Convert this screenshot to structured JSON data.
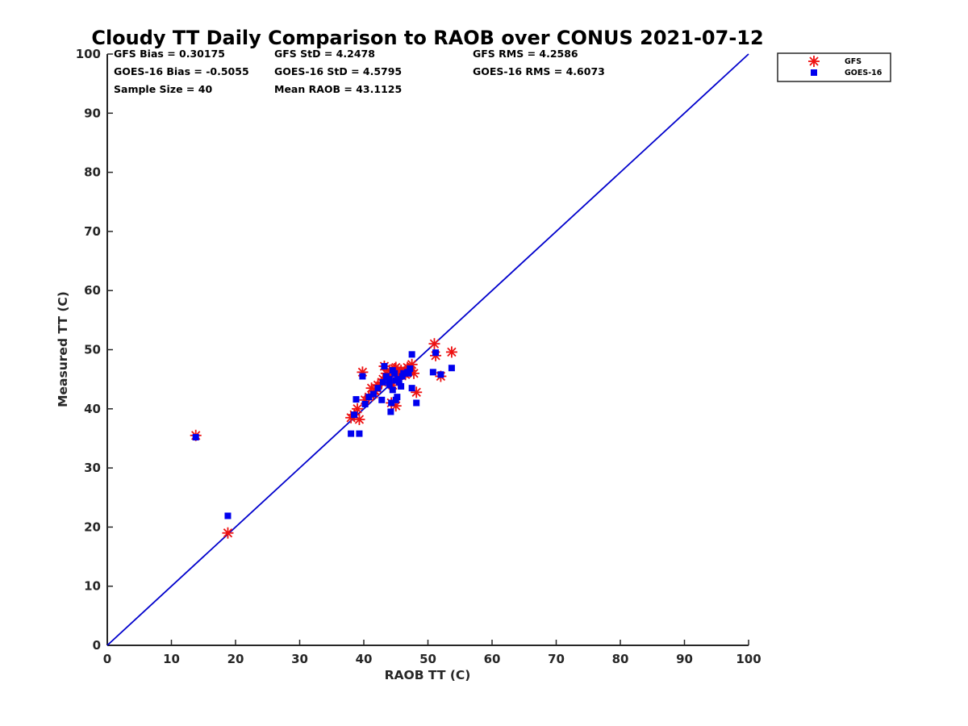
{
  "chart_data": {
    "type": "scatter",
    "title": "Cloudy TT Daily Comparison to RAOB over CONUS 2021-07-12",
    "xlabel": "RAOB TT (C)",
    "ylabel": "Measured TT (C)",
    "xlim": [
      0,
      100
    ],
    "ylim": [
      0,
      100
    ],
    "xticks": [
      "0",
      "10",
      "20",
      "30",
      "40",
      "50",
      "60",
      "70",
      "80",
      "90",
      "100"
    ],
    "yticks": [
      "0",
      "10",
      "20",
      "30",
      "40",
      "50",
      "60",
      "70",
      "80",
      "90",
      "100"
    ],
    "grid": false,
    "legend_position": "outside-top-right",
    "stats": [
      [
        "GFS Bias = 0.30175",
        "GFS StD = 4.2478",
        "GFS RMS = 4.2586"
      ],
      [
        "GOES-16 Bias = -0.5055",
        "GOES-16 StD = 4.5795",
        "GOES-16 RMS = 4.6073"
      ],
      [
        "Sample Size = 40",
        "Mean RAOB = 43.1125",
        ""
      ]
    ],
    "reference_line": {
      "x": [
        0,
        100
      ],
      "y": [
        0,
        100
      ],
      "color": "#0000cc"
    },
    "series": [
      {
        "name": "GFS",
        "marker": "asterisk",
        "color": "#ee1111",
        "points": [
          [
            13.8,
            35.5
          ],
          [
            18.8,
            19.0
          ],
          [
            38.0,
            38.5
          ],
          [
            38.5,
            39.0
          ],
          [
            39.0,
            40.0
          ],
          [
            39.3,
            38.2
          ],
          [
            39.8,
            46.2
          ],
          [
            40.2,
            41.5
          ],
          [
            40.8,
            42.0
          ],
          [
            41.2,
            43.5
          ],
          [
            41.8,
            43.0
          ],
          [
            42.2,
            44.0
          ],
          [
            42.8,
            44.5
          ],
          [
            43.2,
            47.2
          ],
          [
            43.5,
            46.0
          ],
          [
            44.0,
            45.5
          ],
          [
            44.3,
            41.0
          ],
          [
            44.8,
            46.8
          ],
          [
            45.0,
            40.5
          ],
          [
            45.3,
            45.0
          ],
          [
            45.8,
            46.5
          ],
          [
            46.2,
            46.0
          ],
          [
            46.8,
            47.0
          ],
          [
            47.2,
            46.5
          ],
          [
            47.5,
            47.5
          ],
          [
            47.8,
            46.0
          ],
          [
            48.2,
            42.8
          ],
          [
            51.0,
            51.0
          ],
          [
            51.2,
            49.0
          ],
          [
            52.0,
            45.5
          ],
          [
            53.7,
            49.6
          ],
          [
            44.5,
            44.0
          ],
          [
            42.0,
            43.5
          ],
          [
            45.5,
            46.2
          ],
          [
            46.5,
            45.8
          ],
          [
            44.0,
            46.5
          ],
          [
            43.0,
            45.0
          ],
          [
            47.0,
            46.8
          ],
          [
            45.0,
            47.0
          ],
          [
            41.5,
            42.5
          ]
        ]
      },
      {
        "name": "GOES-16",
        "marker": "square",
        "color": "#0000ee",
        "points": [
          [
            13.8,
            35.2
          ],
          [
            18.8,
            21.9
          ],
          [
            38.0,
            35.8
          ],
          [
            38.5,
            39.0
          ],
          [
            38.8,
            41.6
          ],
          [
            39.3,
            35.8
          ],
          [
            39.8,
            45.5
          ],
          [
            40.2,
            40.8
          ],
          [
            40.8,
            42.0
          ],
          [
            41.5,
            42.5
          ],
          [
            42.2,
            43.5
          ],
          [
            42.8,
            41.5
          ],
          [
            43.2,
            47.2
          ],
          [
            43.5,
            45.5
          ],
          [
            44.0,
            44.0
          ],
          [
            44.2,
            39.5
          ],
          [
            44.3,
            41.0
          ],
          [
            44.5,
            43.2
          ],
          [
            44.8,
            46.0
          ],
          [
            45.0,
            41.5
          ],
          [
            45.2,
            42.0
          ],
          [
            45.3,
            45.0
          ],
          [
            45.5,
            44.5
          ],
          [
            45.8,
            43.8
          ],
          [
            46.2,
            46.0
          ],
          [
            46.8,
            46.2
          ],
          [
            47.2,
            46.8
          ],
          [
            47.5,
            49.2
          ],
          [
            47.5,
            43.5
          ],
          [
            48.2,
            41.0
          ],
          [
            50.8,
            46.2
          ],
          [
            51.2,
            49.5
          ],
          [
            52.0,
            45.8
          ],
          [
            53.7,
            46.9
          ],
          [
            44.0,
            45.0
          ],
          [
            43.0,
            44.5
          ],
          [
            46.0,
            45.5
          ],
          [
            44.5,
            46.5
          ],
          [
            45.0,
            44.8
          ],
          [
            47.0,
            46.0
          ]
        ]
      }
    ]
  }
}
